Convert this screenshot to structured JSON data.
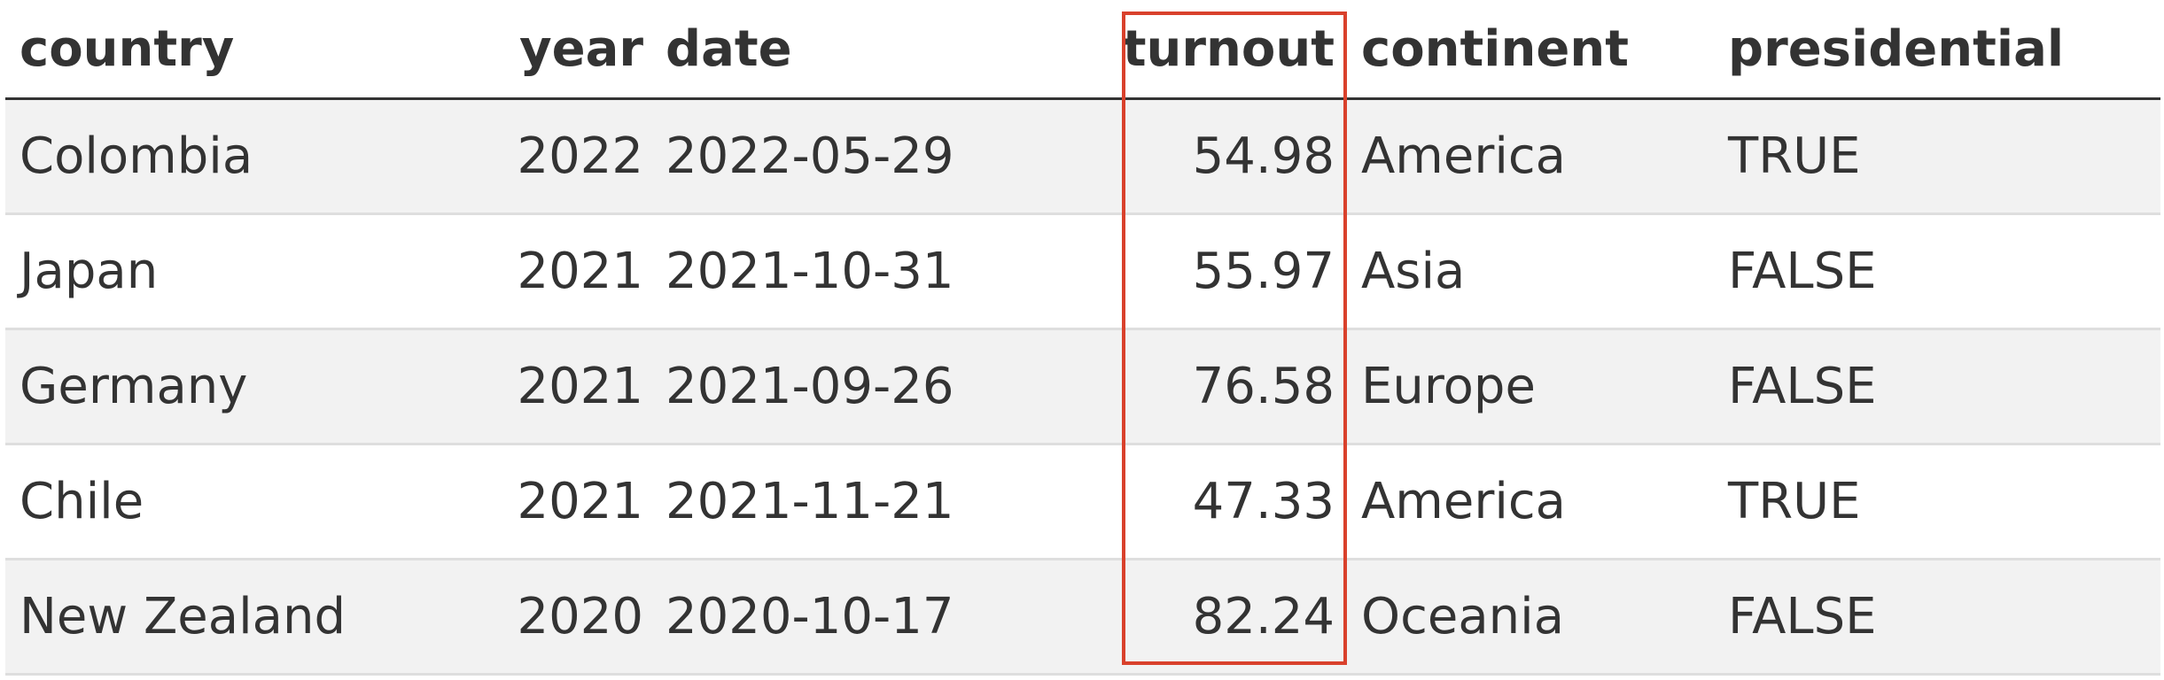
{
  "table": {
    "headers": {
      "country": "country",
      "year": "year",
      "date": "date",
      "turnout": "turnout",
      "continent": "continent",
      "presidential": "presidential"
    },
    "rows": [
      {
        "country": "Colombia",
        "year": "2022",
        "date": "2022-05-29",
        "turnout": "54.98",
        "continent": "America",
        "presidential": "TRUE"
      },
      {
        "country": "Japan",
        "year": "2021",
        "date": "2021-10-31",
        "turnout": "55.97",
        "continent": "Asia",
        "presidential": "FALSE"
      },
      {
        "country": "Germany",
        "year": "2021",
        "date": "2021-09-26",
        "turnout": "76.58",
        "continent": "Europe",
        "presidential": "FALSE"
      },
      {
        "country": "Chile",
        "year": "2021",
        "date": "2021-11-21",
        "turnout": "47.33",
        "continent": "America",
        "presidential": "TRUE"
      },
      {
        "country": "New Zealand",
        "year": "2020",
        "date": "2020-10-17",
        "turnout": "82.24",
        "continent": "Oceania",
        "presidential": "FALSE"
      }
    ]
  },
  "colors": {
    "highlight_border": "#d9412c",
    "stripe": "#f2f2f2",
    "text": "#333333"
  }
}
